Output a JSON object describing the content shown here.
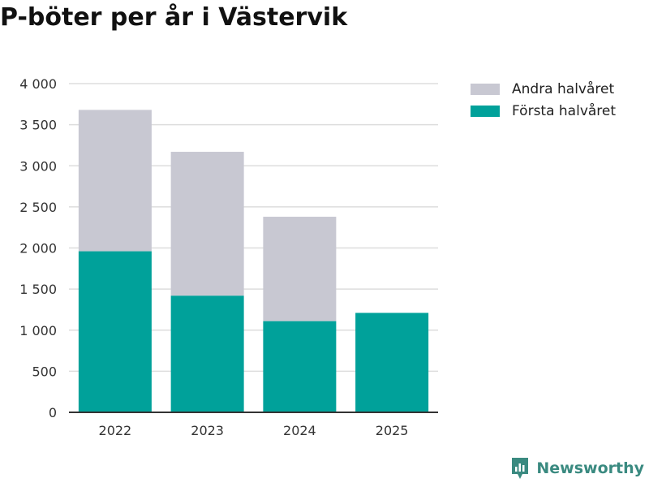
{
  "title": "P-böter per år i Västervik",
  "branding": {
    "name": "Newsworthy",
    "icon": "newsworthy-logo-icon"
  },
  "colors": {
    "first_half": "#00a19a",
    "second_half": "#c8c8d2",
    "grid": "#dddddd",
    "axis": "#333333"
  },
  "chart_data": {
    "type": "bar",
    "stacked": true,
    "title": "P-böter per år i Västervik",
    "xlabel": "",
    "ylabel": "",
    "categories": [
      "2022",
      "2023",
      "2024",
      "2025"
    ],
    "series": [
      {
        "name": "Första halvåret",
        "values": [
          1960,
          1420,
          1110,
          1210
        ]
      },
      {
        "name": "Andra halvåret",
        "values": [
          1720,
          1750,
          1270,
          0
        ]
      }
    ],
    "ylim": [
      0,
      4000
    ],
    "yticks": [
      0,
      500,
      1000,
      1500,
      2000,
      2500,
      3000,
      3500,
      4000
    ],
    "ytick_labels": [
      "0",
      "500",
      "1 000",
      "1 500",
      "2 000",
      "2 500",
      "3 000",
      "3 500",
      "4 000"
    ],
    "grid": true,
    "legend": {
      "placement": "right",
      "entries": [
        "Andra halvåret",
        "Första halvåret"
      ]
    }
  }
}
